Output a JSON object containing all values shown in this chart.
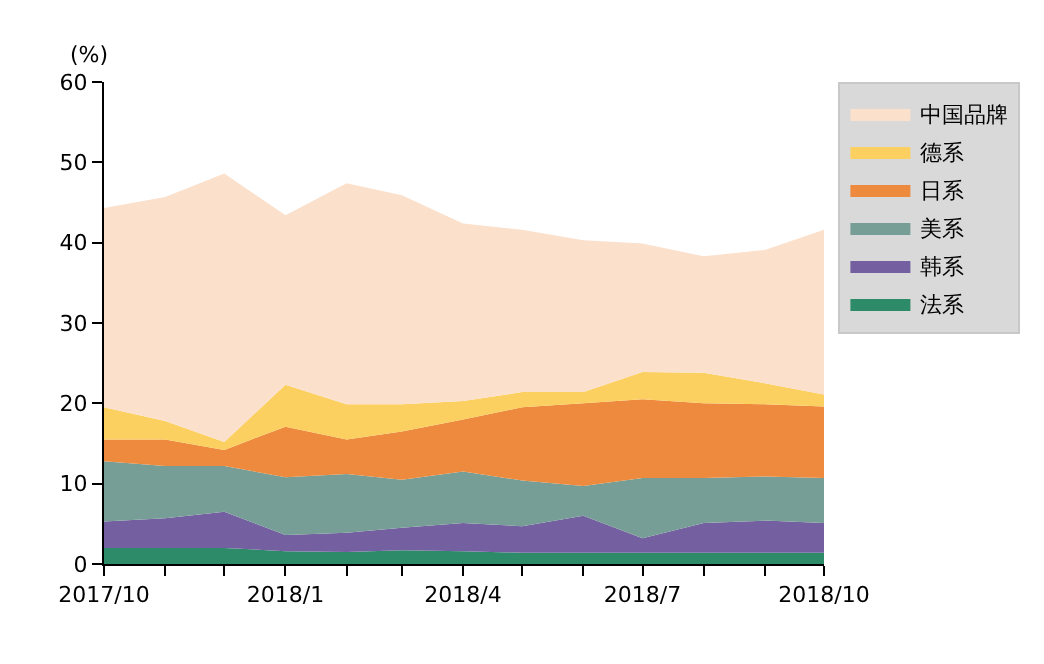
{
  "chart_data": {
    "type": "area",
    "stacked": true,
    "ylabel": "(%)",
    "x": [
      "2017-10",
      "2017-11",
      "2017-12",
      "2018-01",
      "2018-02",
      "2018-03",
      "2018-04",
      "2018-05",
      "2018-06",
      "2018-07",
      "2018-08",
      "2018-09",
      "2018-10"
    ],
    "xlim": [
      "2017-10",
      "2018-10"
    ],
    "xticks": [
      {
        "value": "2017-10",
        "label": "2017/10"
      },
      {
        "value": "2017-11",
        "label": null
      },
      {
        "value": "2017-12",
        "label": null
      },
      {
        "value": "2018-01",
        "label": "2018/1"
      },
      {
        "value": "2018-02",
        "label": null
      },
      {
        "value": "2018-03",
        "label": null
      },
      {
        "value": "2018-04",
        "label": "2018/4"
      },
      {
        "value": "2018-05",
        "label": null
      },
      {
        "value": "2018-06",
        "label": null
      },
      {
        "value": "2018-07",
        "label": "2018/7"
      },
      {
        "value": "2018-08",
        "label": null
      },
      {
        "value": "2018-09",
        "label": null
      },
      {
        "value": "2018-10",
        "label": "2018/10"
      }
    ],
    "ylim": [
      0,
      60
    ],
    "yticks": [
      0,
      10,
      20,
      30,
      40,
      50,
      60
    ],
    "legend": "right",
    "series": [
      {
        "name": "法系",
        "color": "#2e8b6a",
        "values": [
          2.0,
          2.0,
          2.0,
          1.6,
          1.5,
          1.7,
          1.6,
          1.4,
          1.4,
          1.4,
          1.4,
          1.4,
          1.4
        ]
      },
      {
        "name": "韩系",
        "color": "#7460a0",
        "values": [
          3.3,
          3.7,
          4.5,
          2.0,
          2.4,
          2.8,
          3.5,
          3.3,
          4.6,
          1.8,
          3.7,
          4.0,
          3.7
        ]
      },
      {
        "name": "美系",
        "color": "#769e97",
        "values": [
          7.5,
          6.5,
          5.7,
          7.2,
          7.3,
          6.0,
          6.4,
          5.7,
          3.7,
          7.5,
          5.6,
          5.5,
          5.6
        ]
      },
      {
        "name": "日系",
        "color": "#ed8a3d",
        "values": [
          2.7,
          3.3,
          2.0,
          6.3,
          4.3,
          6.0,
          6.5,
          9.1,
          10.3,
          9.8,
          9.3,
          9.0,
          8.9
        ]
      },
      {
        "name": "德系",
        "color": "#fcd060",
        "values": [
          4.0,
          2.3,
          1.0,
          5.2,
          4.4,
          3.4,
          2.3,
          1.9,
          1.4,
          3.4,
          3.8,
          2.6,
          1.5
        ]
      },
      {
        "name": "中国品牌",
        "color": "#fbe0cc",
        "values": [
          24.8,
          27.9,
          33.4,
          21.1,
          27.5,
          26.0,
          22.1,
          20.2,
          18.9,
          16.0,
          14.5,
          16.6,
          20.5
        ]
      }
    ]
  }
}
